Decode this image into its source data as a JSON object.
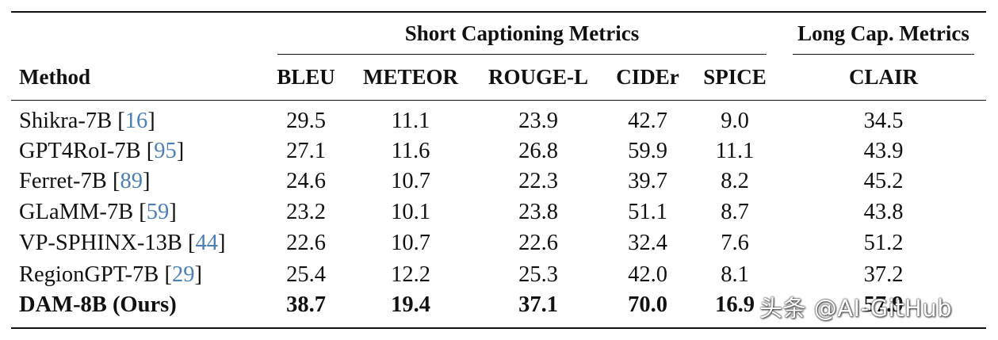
{
  "table": {
    "group_headers": {
      "short": "Short Captioning Metrics",
      "long": "Long Cap. Metrics"
    },
    "columns": [
      "Method",
      "BLEU",
      "METEOR",
      "ROUGE-L",
      "CIDEr",
      "SPICE",
      "CLAIR"
    ],
    "rows": [
      {
        "method": "Shikra-7B",
        "ref": "16",
        "values": [
          "29.5",
          "11.1",
          "23.9",
          "42.7",
          "9.0",
          "34.5"
        ]
      },
      {
        "method": "GPT4RoI-7B",
        "ref": "95",
        "values": [
          "27.1",
          "11.6",
          "26.8",
          "59.9",
          "11.1",
          "43.9"
        ]
      },
      {
        "method": "Ferret-7B",
        "ref": "89",
        "values": [
          "24.6",
          "10.7",
          "22.3",
          "39.7",
          "8.2",
          "45.2"
        ]
      },
      {
        "method": "GLaMM-7B",
        "ref": "59",
        "values": [
          "23.2",
          "10.1",
          "23.8",
          "51.1",
          "8.7",
          "43.8"
        ]
      },
      {
        "method": "VP-SPHINX-13B",
        "ref": "44",
        "values": [
          "22.6",
          "10.7",
          "22.6",
          "32.4",
          "7.6",
          "51.2"
        ]
      },
      {
        "method": "RegionGPT-7B",
        "ref": "29",
        "values": [
          "25.4",
          "12.2",
          "25.3",
          "42.0",
          "8.1",
          "37.2"
        ]
      },
      {
        "method": "DAM-8B (Ours)",
        "values": [
          "38.7",
          "19.4",
          "37.1",
          "70.0",
          "16.9",
          "57.9"
        ]
      }
    ]
  },
  "watermark": "头条 @AI-GitHub"
}
